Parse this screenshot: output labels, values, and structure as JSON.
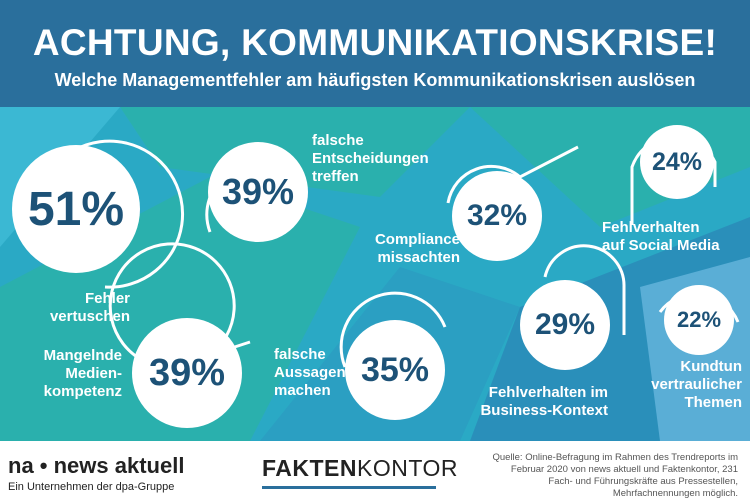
{
  "title": "ACHTUNG, KOMMUNIKATIONSKRISE!",
  "subtitle": "Welche Managementfehler am häufigsten Kommunikationskrisen auslösen",
  "colors": {
    "header": "#2a6f9c",
    "accent": "#2aa9c5",
    "teal": "#2ab0ad",
    "number": "#1d5277"
  },
  "stats": [
    {
      "value": "51%",
      "label": [
        "Fehler",
        "vertuschen"
      ]
    },
    {
      "value": "39%",
      "label": [
        "falsche",
        "Entscheidungen",
        "treffen"
      ]
    },
    {
      "value": "32%",
      "label": [
        "Compliance",
        "missachten"
      ]
    },
    {
      "value": "24%",
      "label": [
        "Fehlverhalten",
        "auf Social Media"
      ]
    },
    {
      "value": "39%",
      "label": [
        "Mangelnde",
        "Medien-",
        "kompetenz"
      ]
    },
    {
      "value": "35%",
      "label": [
        "falsche",
        "Aussagen",
        "machen"
      ]
    },
    {
      "value": "29%",
      "label": [
        "Fehlverhalten im",
        "Business-Kontext"
      ]
    },
    {
      "value": "22%",
      "label": [
        "Kundtun",
        "vertraulicher",
        "Themen"
      ]
    }
  ],
  "footer": {
    "brand_left": "na • news aktuell",
    "brand_left_sub": "Ein Unternehmen der dpa-Gruppe",
    "brand_center_a": "FAKTEN",
    "brand_center_b": "KONTOR",
    "source": "Quelle: Online-Befragung im Rahmen des Trendreports im Februar 2020 von news aktuell und Faktenkontor, 231 Fach- und Führungskräfte aus Pressestellen, Mehrfachnennungen möglich."
  }
}
